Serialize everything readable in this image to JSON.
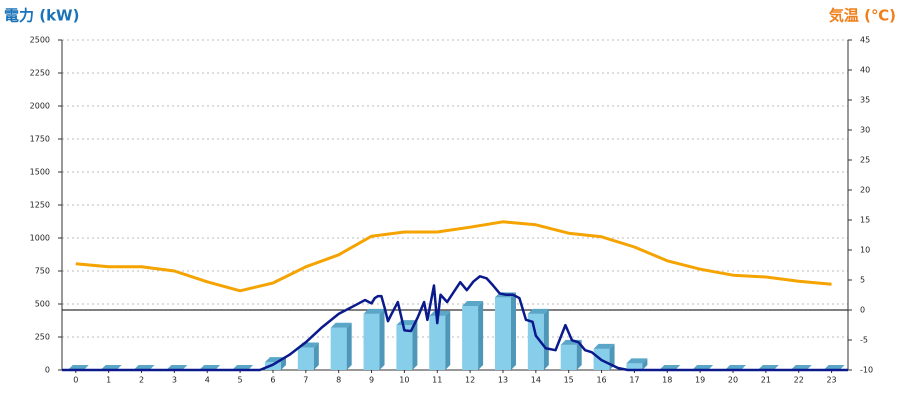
{
  "chart_data": {
    "type": "combo",
    "title_left": "電力 (kW)",
    "title_right": "気温 (℃)",
    "x": [
      0,
      1,
      2,
      3,
      4,
      5,
      6,
      7,
      8,
      9,
      10,
      11,
      12,
      13,
      14,
      15,
      16,
      17,
      18,
      19,
      20,
      21,
      22,
      23
    ],
    "xlim": [
      -0.42,
      23.5
    ],
    "ylim": [
      0,
      2500
    ],
    "yticks": [
      0,
      250,
      500,
      750,
      1000,
      1250,
      1500,
      1750,
      2000,
      2250,
      2500
    ],
    "y2lim": [
      -10,
      45
    ],
    "y2ticks": [
      -10,
      -5,
      0,
      5,
      10,
      15,
      20,
      25,
      30,
      35,
      40,
      45
    ],
    "grid": true,
    "series": [
      {
        "type": "bar",
        "color": "#87ceeb",
        "values": [
          0,
          0,
          0,
          0,
          0,
          0,
          60,
          170,
          320,
          425,
          340,
          410,
          485,
          550,
          425,
          190,
          160,
          50,
          0,
          0,
          0,
          0,
          0,
          0
        ]
      },
      {
        "type": "line",
        "color": "#0a1a8c",
        "x": [
          -0.42,
          5.6,
          6,
          6.5,
          7,
          7.5,
          8,
          8.5,
          8.8,
          9,
          9.1,
          9.2,
          9.3,
          9.4,
          9.5,
          9.6,
          9.8,
          10,
          10.2,
          10.4,
          10.6,
          10.7,
          10.9,
          11,
          11.1,
          11.3,
          11.5,
          11.7,
          11.9,
          12.1,
          12.3,
          12.5,
          12.7,
          12.9,
          13.1,
          13.3,
          13.5,
          13.7,
          13.9,
          14,
          14.3,
          14.6,
          14.9,
          15.1,
          15.3,
          15.5,
          15.7,
          16,
          16.5,
          16.8,
          23.5
        ],
        "values": [
          0,
          0,
          40,
          115,
          210,
          325,
          425,
          490,
          530,
          505,
          545,
          560,
          560,
          470,
          370,
          420,
          515,
          300,
          295,
          395,
          515,
          380,
          640,
          355,
          570,
          515,
          590,
          665,
          605,
          670,
          710,
          695,
          640,
          580,
          570,
          570,
          545,
          380,
          365,
          260,
          165,
          150,
          340,
          225,
          210,
          150,
          135,
          75,
          15,
          0,
          0
        ]
      },
      {
        "type": "line",
        "axis": "y2",
        "color": "#f5a300",
        "values": [
          7.7,
          7.2,
          7.2,
          6.5,
          4.7,
          3.2,
          4.5,
          7.2,
          9.2,
          12.3,
          13,
          13,
          13.8,
          14.7,
          14.2,
          12.8,
          12.2,
          10.5,
          8.2,
          6.8,
          5.8,
          5.5,
          4.8,
          4.3
        ]
      }
    ]
  }
}
